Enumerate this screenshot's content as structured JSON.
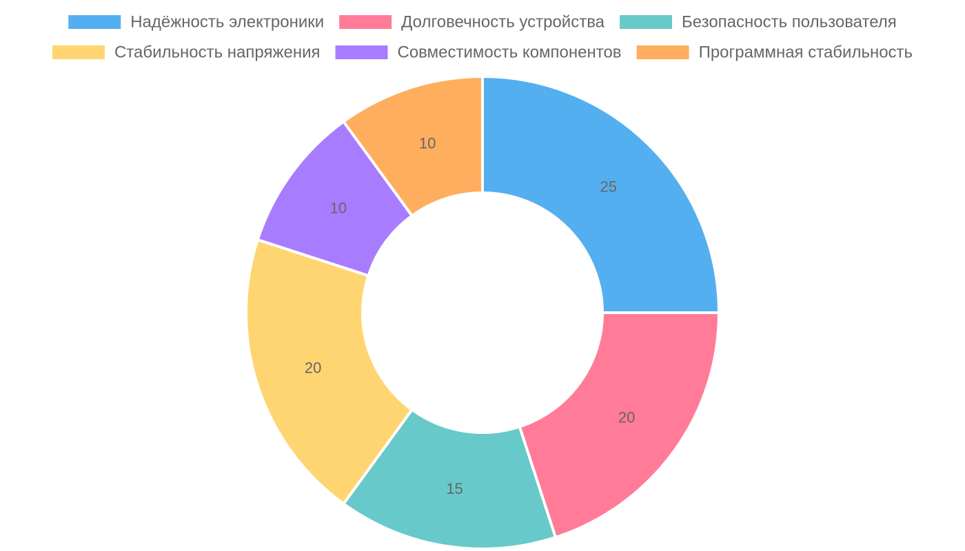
{
  "chart_data": {
    "type": "pie",
    "variant": "doughnut",
    "title": "",
    "categories": [
      "Надёжность электроники",
      "Долговечность устройства",
      "Безопасность пользователя",
      "Стабильность напряжения",
      "Совместимость компонентов",
      "Программная стабильность"
    ],
    "values": [
      25,
      20,
      15,
      20,
      10,
      10
    ],
    "colors": [
      "#54aff0",
      "#ff7b97",
      "#67c9c9",
      "#ffd572",
      "#a87cff",
      "#ffae5e"
    ],
    "legend_position": "top",
    "data_labels": true
  }
}
